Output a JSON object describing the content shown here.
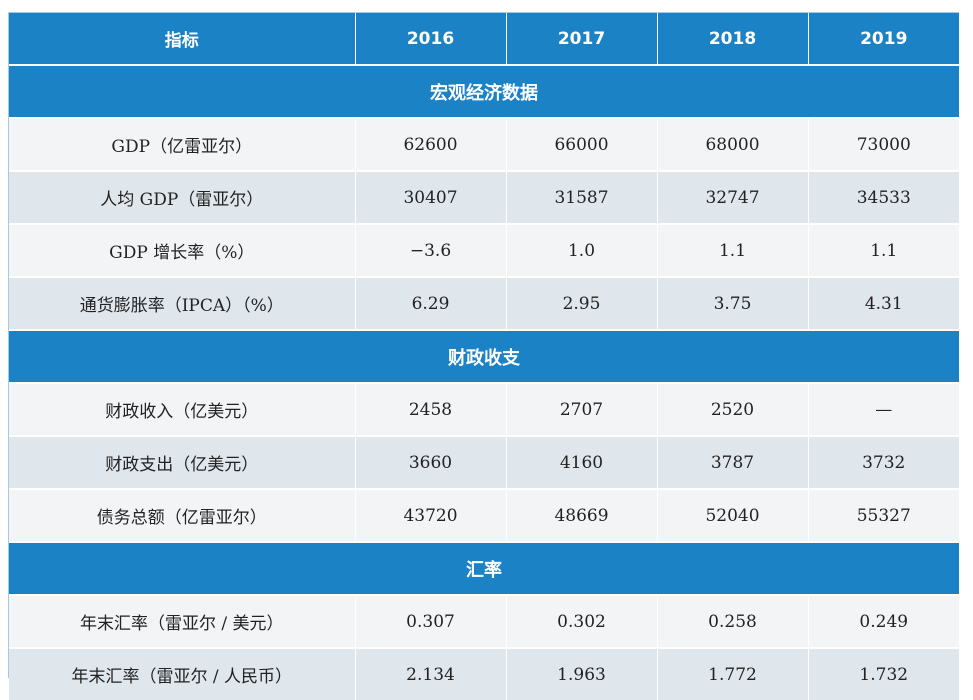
{
  "header": {
    "label": "指标",
    "years": [
      "2016",
      "2017",
      "2018",
      "2019"
    ]
  },
  "sections": [
    {
      "title": "宏观经济数据",
      "rows": [
        {
          "label": "GDP（亿雷亚尔）",
          "values": [
            "62600",
            "66000",
            "68000",
            "73000"
          ]
        },
        {
          "label": "人均 GDP（雷亚尔）",
          "values": [
            "30407",
            "31587",
            "32747",
            "34533"
          ]
        },
        {
          "label": "GDP 增长率（%）",
          "values": [
            "−3.6",
            "1.0",
            "1.1",
            "1.1"
          ]
        },
        {
          "label": "通货膨胀率（IPCA）（%）",
          "values": [
            "6.29",
            "2.95",
            "3.75",
            "4.31"
          ]
        }
      ]
    },
    {
      "title": "财政收支",
      "rows": [
        {
          "label": "财政收入（亿美元）",
          "values": [
            "2458",
            "2707",
            "2520",
            "—"
          ]
        },
        {
          "label": "财政支出（亿美元）",
          "values": [
            "3660",
            "4160",
            "3787",
            "3732"
          ]
        },
        {
          "label": "债务总额（亿雷亚尔）",
          "values": [
            "43720",
            "48669",
            "52040",
            "55327"
          ]
        }
      ]
    },
    {
      "title": "汇率",
      "rows": [
        {
          "label": "年末汇率（雷亚尔 / 美元）",
          "values": [
            "0.307",
            "0.302",
            "0.258",
            "0.249"
          ]
        },
        {
          "label": "年末汇率（雷亚尔 / 人民币）",
          "values": [
            "2.134",
            "1.963",
            "1.772",
            "1.732"
          ]
        }
      ]
    }
  ]
}
